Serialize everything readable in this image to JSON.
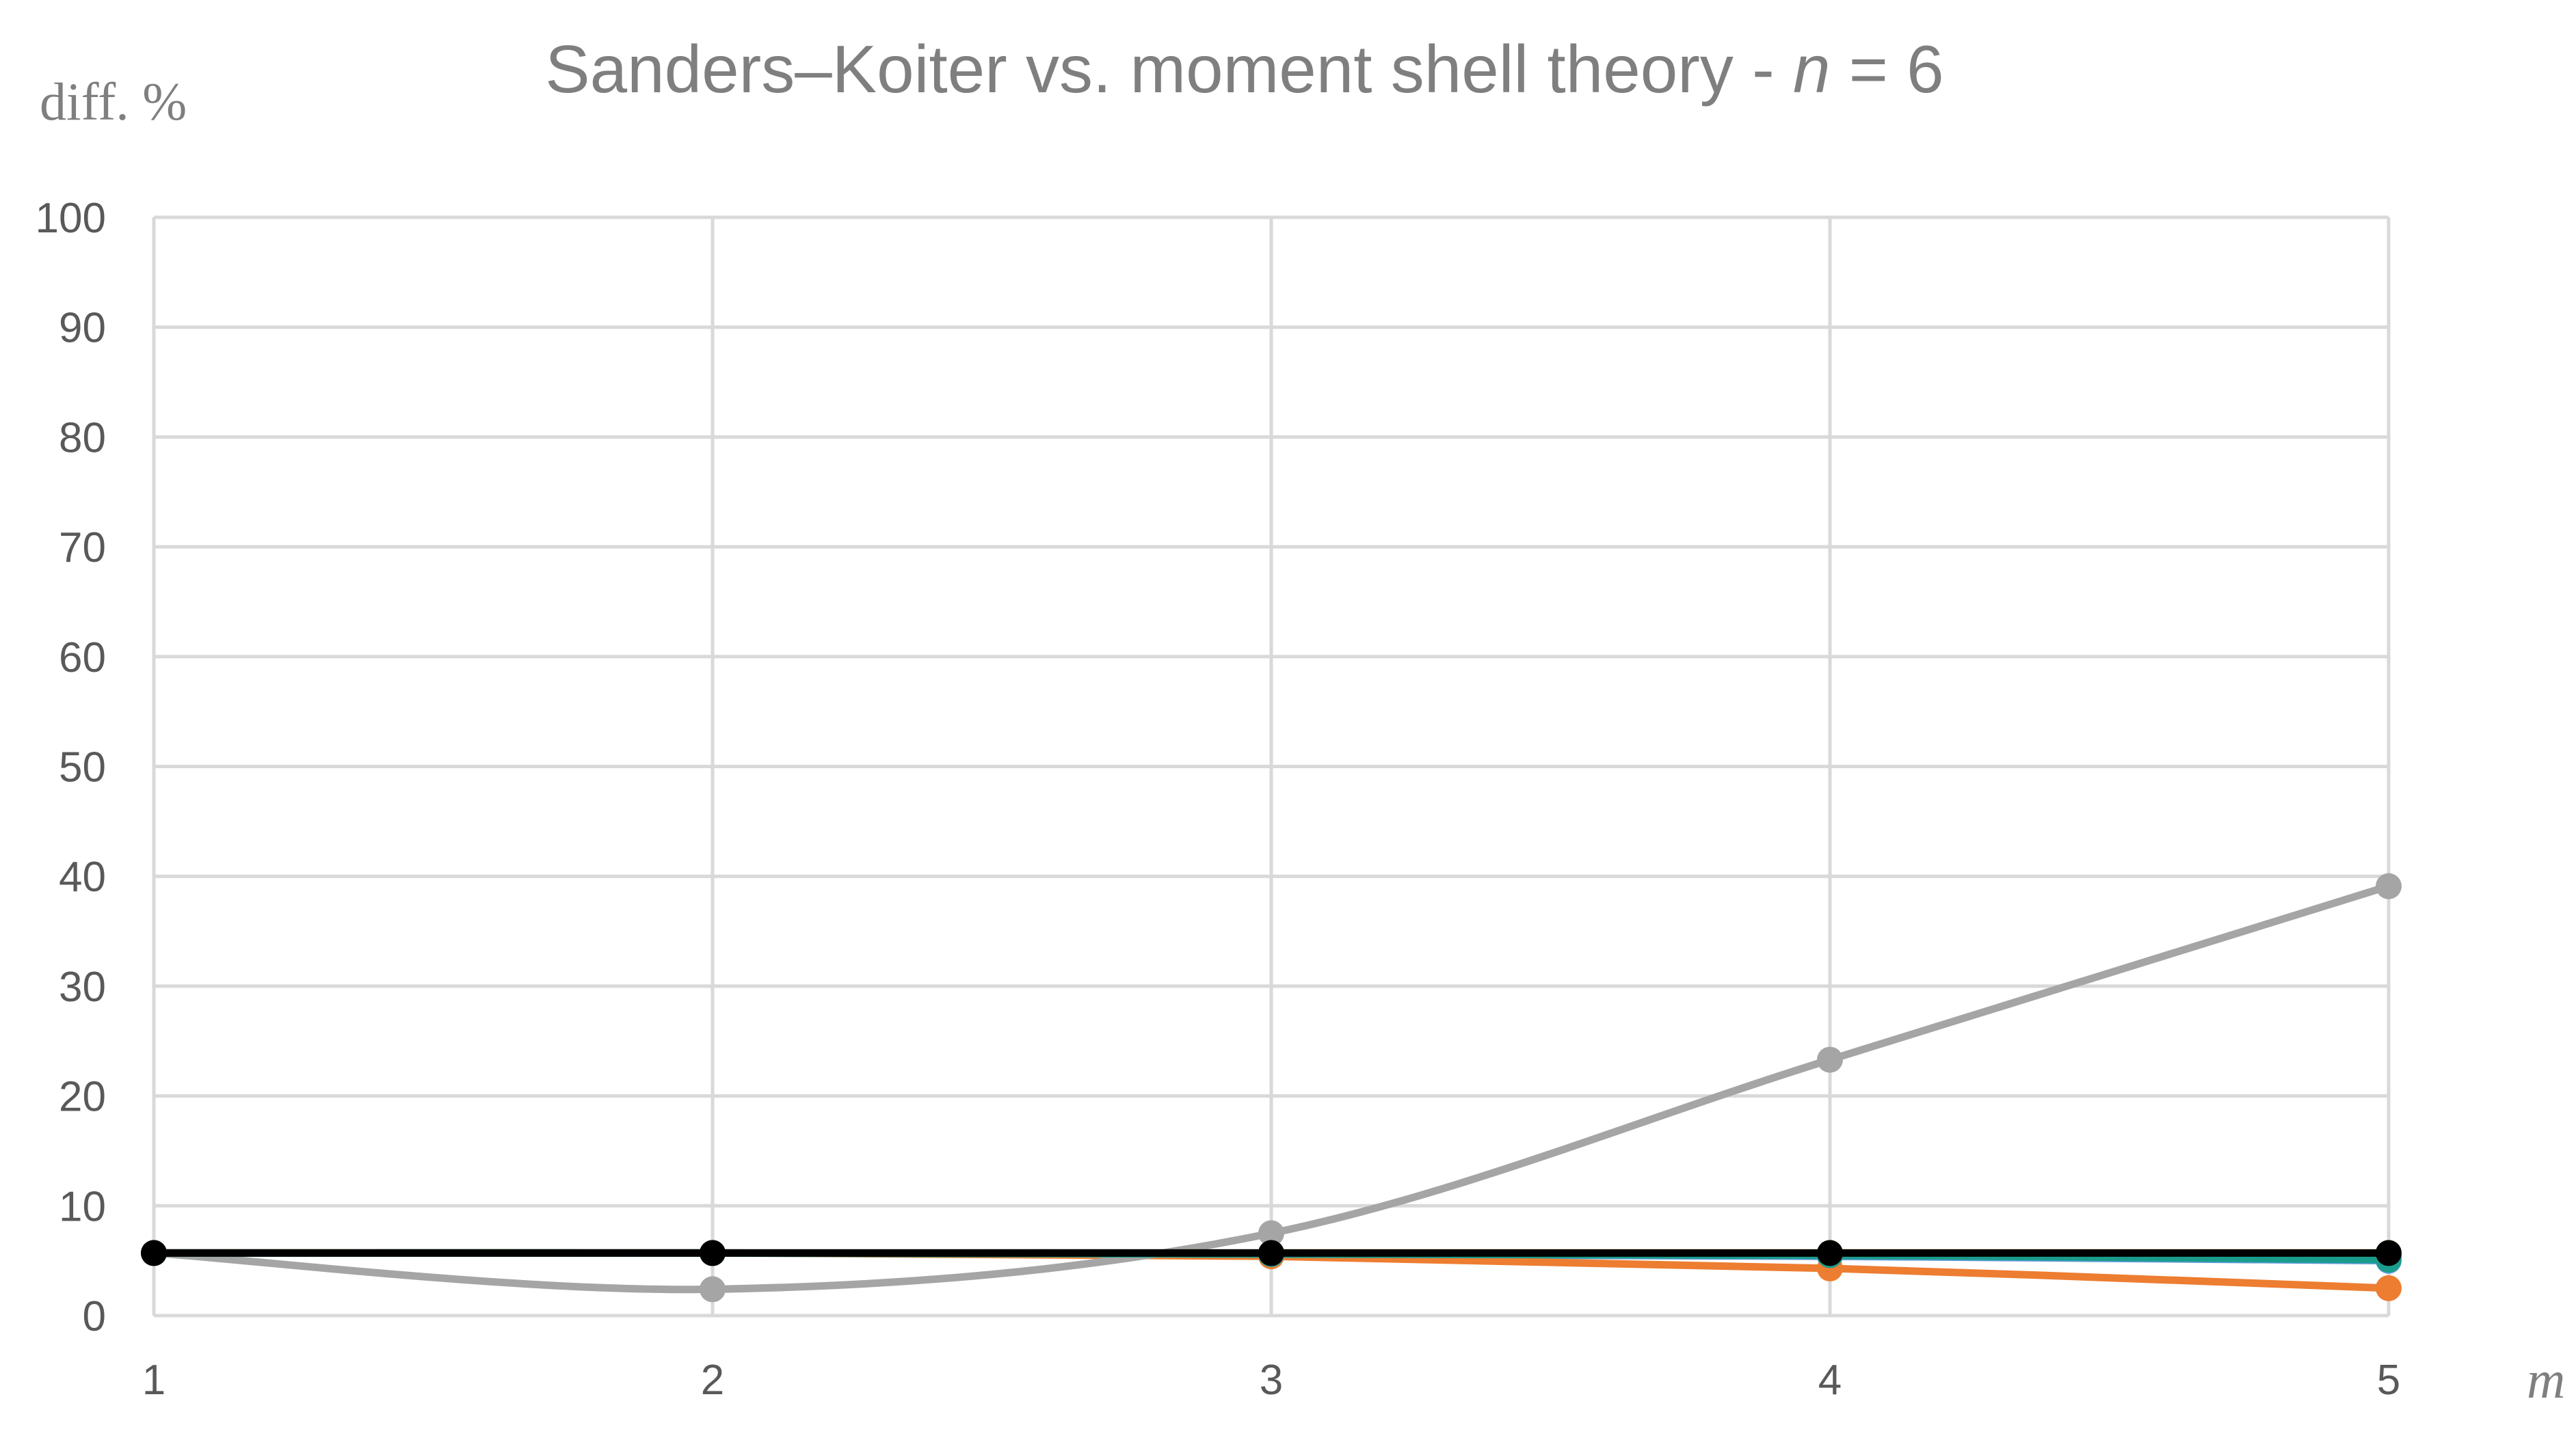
{
  "chart_data": {
    "type": "line",
    "title_prefix": "Sanders–Koiter vs. moment shell theory - ",
    "title_var": "n",
    "title_suffix": " = 6",
    "ylabel": "diff. %",
    "xlabel": "m",
    "x": [
      1,
      2,
      3,
      4,
      5
    ],
    "ylim": [
      0,
      100
    ],
    "yticks": [
      0,
      10,
      20,
      30,
      40,
      50,
      60,
      70,
      80,
      90,
      100
    ],
    "grid": true,
    "legend": "none",
    "series": [
      {
        "color": "#5b9bd5",
        "values": [
          5.7,
          5.7,
          5.6,
          5.4,
          5.0
        ]
      },
      {
        "color": "#ed7d31",
        "values": [
          5.7,
          5.7,
          5.4,
          4.3,
          2.5
        ]
      },
      {
        "color": "#a5a5a5",
        "values": [
          5.7,
          2.4,
          7.5,
          23.3,
          39.1
        ]
      },
      {
        "color": "#ffc000",
        "values": [
          5.7,
          5.7,
          5.7,
          5.7,
          5.7
        ]
      },
      {
        "color": "#4472c4",
        "values": [
          5.7,
          5.7,
          5.7,
          5.6,
          5.4
        ]
      },
      {
        "color": "#1a9c8c",
        "values": [
          5.7,
          5.7,
          5.6,
          5.5,
          5.1
        ]
      },
      {
        "color": "#000000",
        "values": [
          5.7,
          5.7,
          5.7,
          5.7,
          5.7
        ]
      }
    ]
  }
}
